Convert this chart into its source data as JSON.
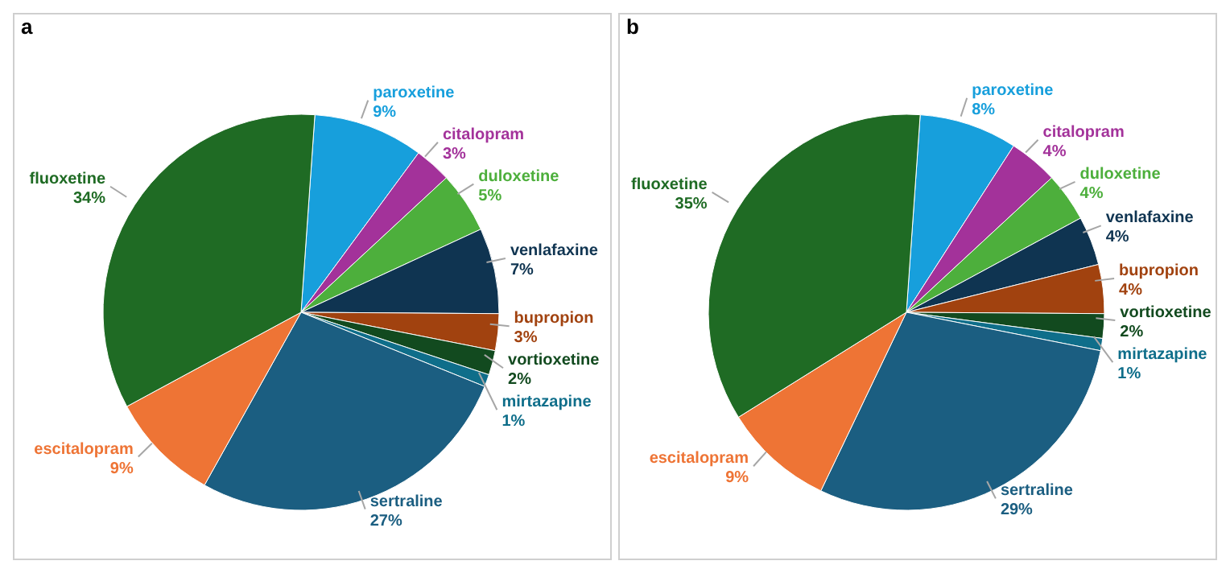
{
  "chart_data": [
    {
      "type": "pie",
      "title": "a",
      "categories": [
        "paroxetine",
        "citalopram",
        "duloxetine",
        "venlafaxine",
        "bupropion",
        "vortioxetine",
        "mirtazapine",
        "sertraline",
        "escitalopram",
        "fluoxetine"
      ],
      "values": [
        9,
        3,
        5,
        7,
        3,
        2,
        1,
        27,
        9,
        34
      ],
      "value_labels": [
        "9%",
        "3%",
        "5%",
        "7%",
        "3%",
        "2%",
        "1%",
        "27%",
        "9%",
        "34%"
      ],
      "colors": [
        "#179fdc",
        "#a3329a",
        "#4daf3c",
        "#0f3451",
        "#a1420f",
        "#124a1f",
        "#0f6e8a",
        "#1b5e81",
        "#ee7435",
        "#1f6b24"
      ]
    },
    {
      "type": "pie",
      "title": "b",
      "categories": [
        "paroxetine",
        "citalopram",
        "duloxetine",
        "venlafaxine",
        "bupropion",
        "vortioxetine",
        "mirtazapine",
        "sertraline",
        "escitalopram",
        "fluoxetine"
      ],
      "values": [
        8,
        4,
        4,
        4,
        4,
        2,
        1,
        29,
        9,
        35
      ],
      "value_labels": [
        "8%",
        "4%",
        "4%",
        "4%",
        "4%",
        "2%",
        "1%",
        "29%",
        "9%",
        "35%"
      ],
      "colors": [
        "#179fdc",
        "#a3329a",
        "#4daf3c",
        "#0f3451",
        "#a1420f",
        "#124a1f",
        "#0f6e8a",
        "#1b5e81",
        "#ee7435",
        "#1f6b24"
      ]
    }
  ]
}
